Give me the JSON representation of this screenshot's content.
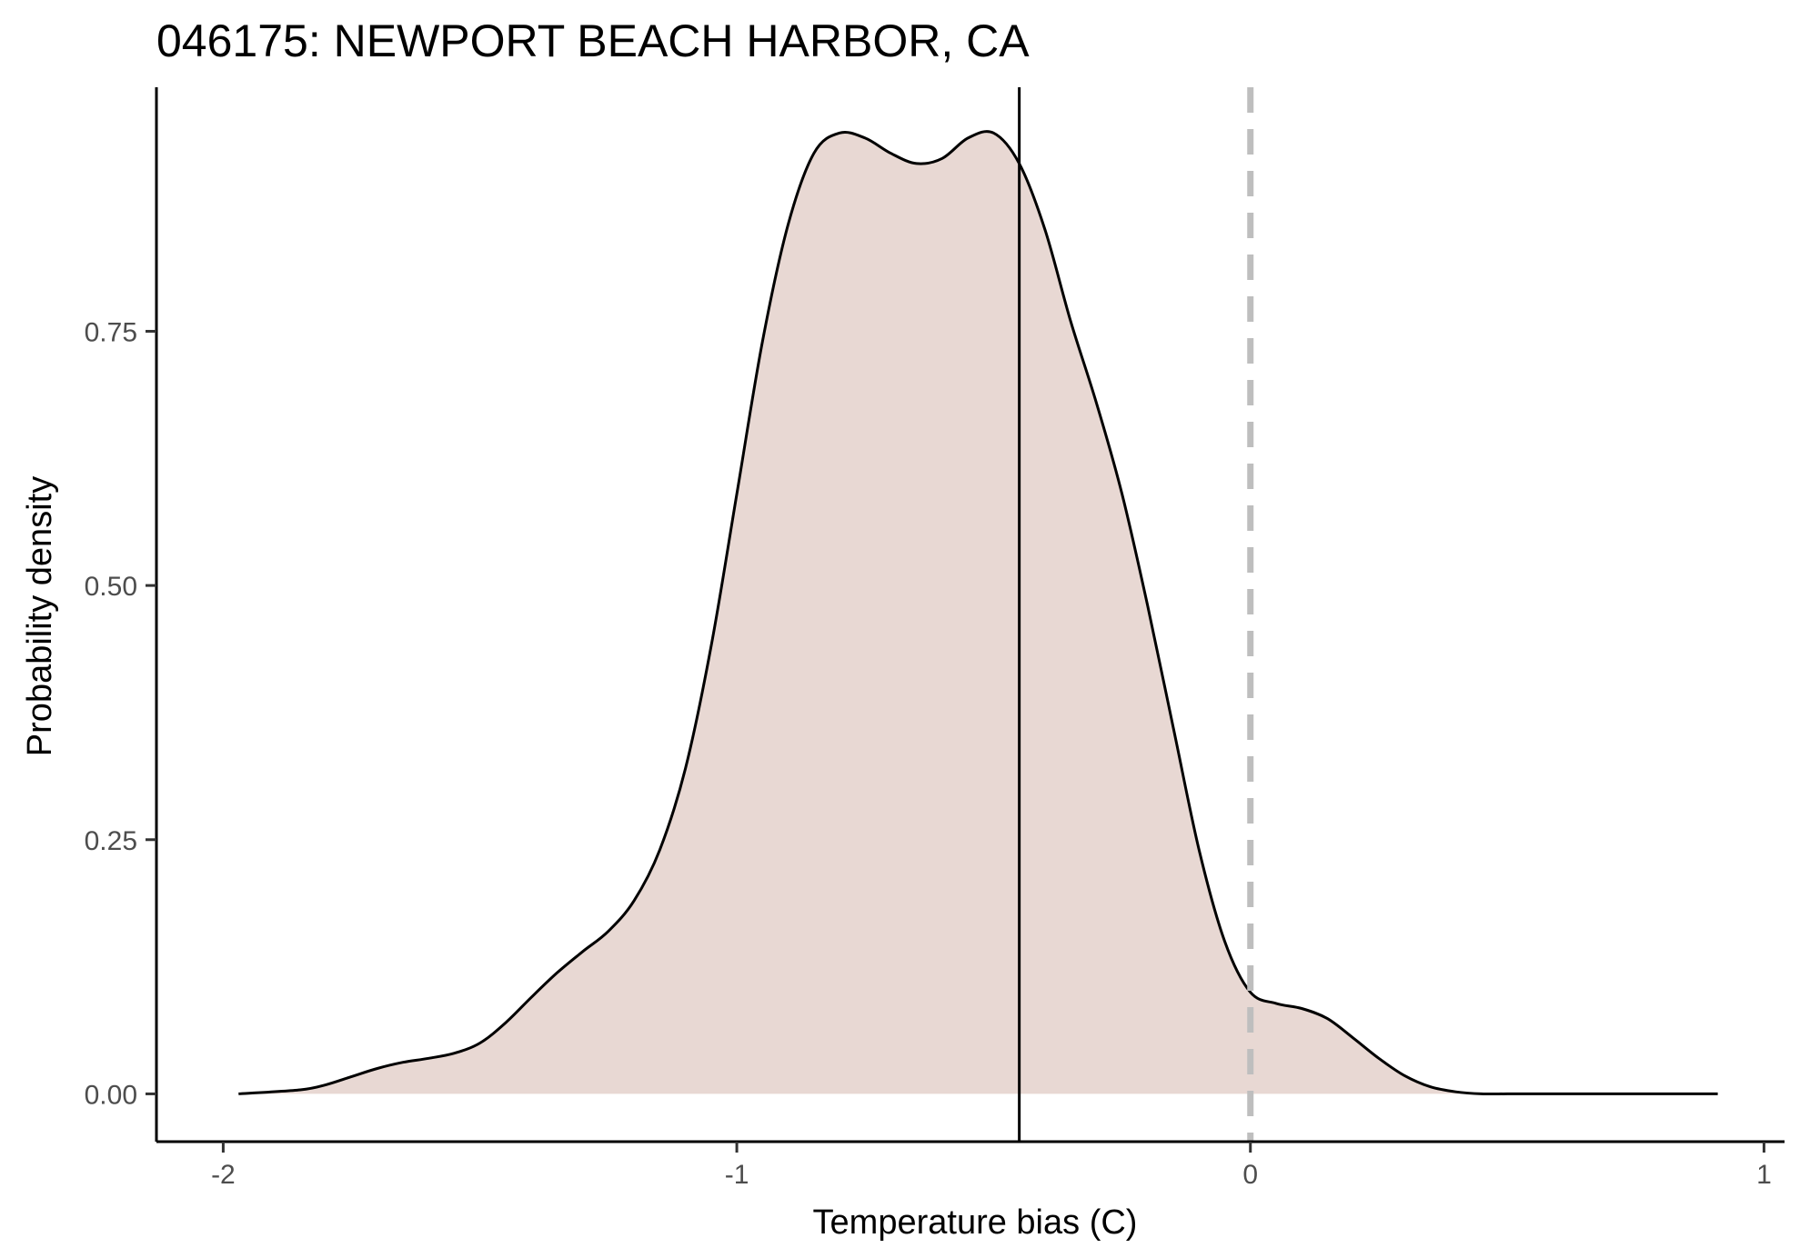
{
  "chart_data": {
    "type": "area",
    "title": "046175: NEWPORT BEACH HARBOR, CA",
    "xlabel": "Temperature bias (C)",
    "ylabel": "Probability density",
    "xlim": [
      -2.13,
      1.04
    ],
    "ylim": [
      -0.047,
      0.99
    ],
    "x_ticks": [
      -2,
      -1,
      0,
      1
    ],
    "x_tick_labels": [
      "-2",
      "-1",
      "0",
      "1"
    ],
    "y_ticks": [
      0,
      0.25,
      0.5,
      0.75
    ],
    "y_tick_labels": [
      "0.00",
      "0.25",
      "0.50",
      "0.75"
    ],
    "grid": false,
    "colors": {
      "fill": "#e8d8d3",
      "line": "#000000",
      "reference_line": "#bebebe",
      "axis": "#000000"
    },
    "series": [
      {
        "x": [
          -1.97,
          -1.85,
          -1.8,
          -1.75,
          -1.7,
          -1.65,
          -1.6,
          -1.55,
          -1.5,
          -1.45,
          -1.4,
          -1.35,
          -1.3,
          -1.25,
          -1.2,
          -1.15,
          -1.1,
          -1.05,
          -1.0,
          -0.95,
          -0.9,
          -0.85,
          -0.8,
          -0.75,
          -0.7,
          -0.65,
          -0.6,
          -0.55,
          -0.5,
          -0.45,
          -0.4,
          -0.35,
          -0.3,
          -0.25,
          -0.2,
          -0.15,
          -0.1,
          -0.05,
          0.0,
          0.05,
          0.1,
          0.15,
          0.2,
          0.25,
          0.3,
          0.35,
          0.4,
          0.45,
          0.5,
          0.55,
          0.6,
          0.65,
          0.7,
          0.75,
          0.8,
          0.85,
          0.91
        ],
        "y": [
          0.0,
          0.004,
          0.009,
          0.017,
          0.025,
          0.031,
          0.035,
          0.04,
          0.05,
          0.07,
          0.095,
          0.119,
          0.14,
          0.16,
          0.19,
          0.24,
          0.32,
          0.44,
          0.59,
          0.74,
          0.855,
          0.925,
          0.945,
          0.94,
          0.925,
          0.915,
          0.92,
          0.94,
          0.945,
          0.915,
          0.85,
          0.76,
          0.68,
          0.59,
          0.48,
          0.36,
          0.24,
          0.15,
          0.1,
          0.089,
          0.084,
          0.074,
          0.055,
          0.035,
          0.018,
          0.007,
          0.002,
          0.0,
          0.0,
          0.0,
          0.0,
          0.0,
          0.0,
          0.0,
          0.0,
          0.0,
          0.0
        ]
      }
    ],
    "reference_lines": [
      {
        "x": -0.45,
        "style": "solid"
      },
      {
        "x": 0.0,
        "style": "dashed"
      }
    ]
  }
}
